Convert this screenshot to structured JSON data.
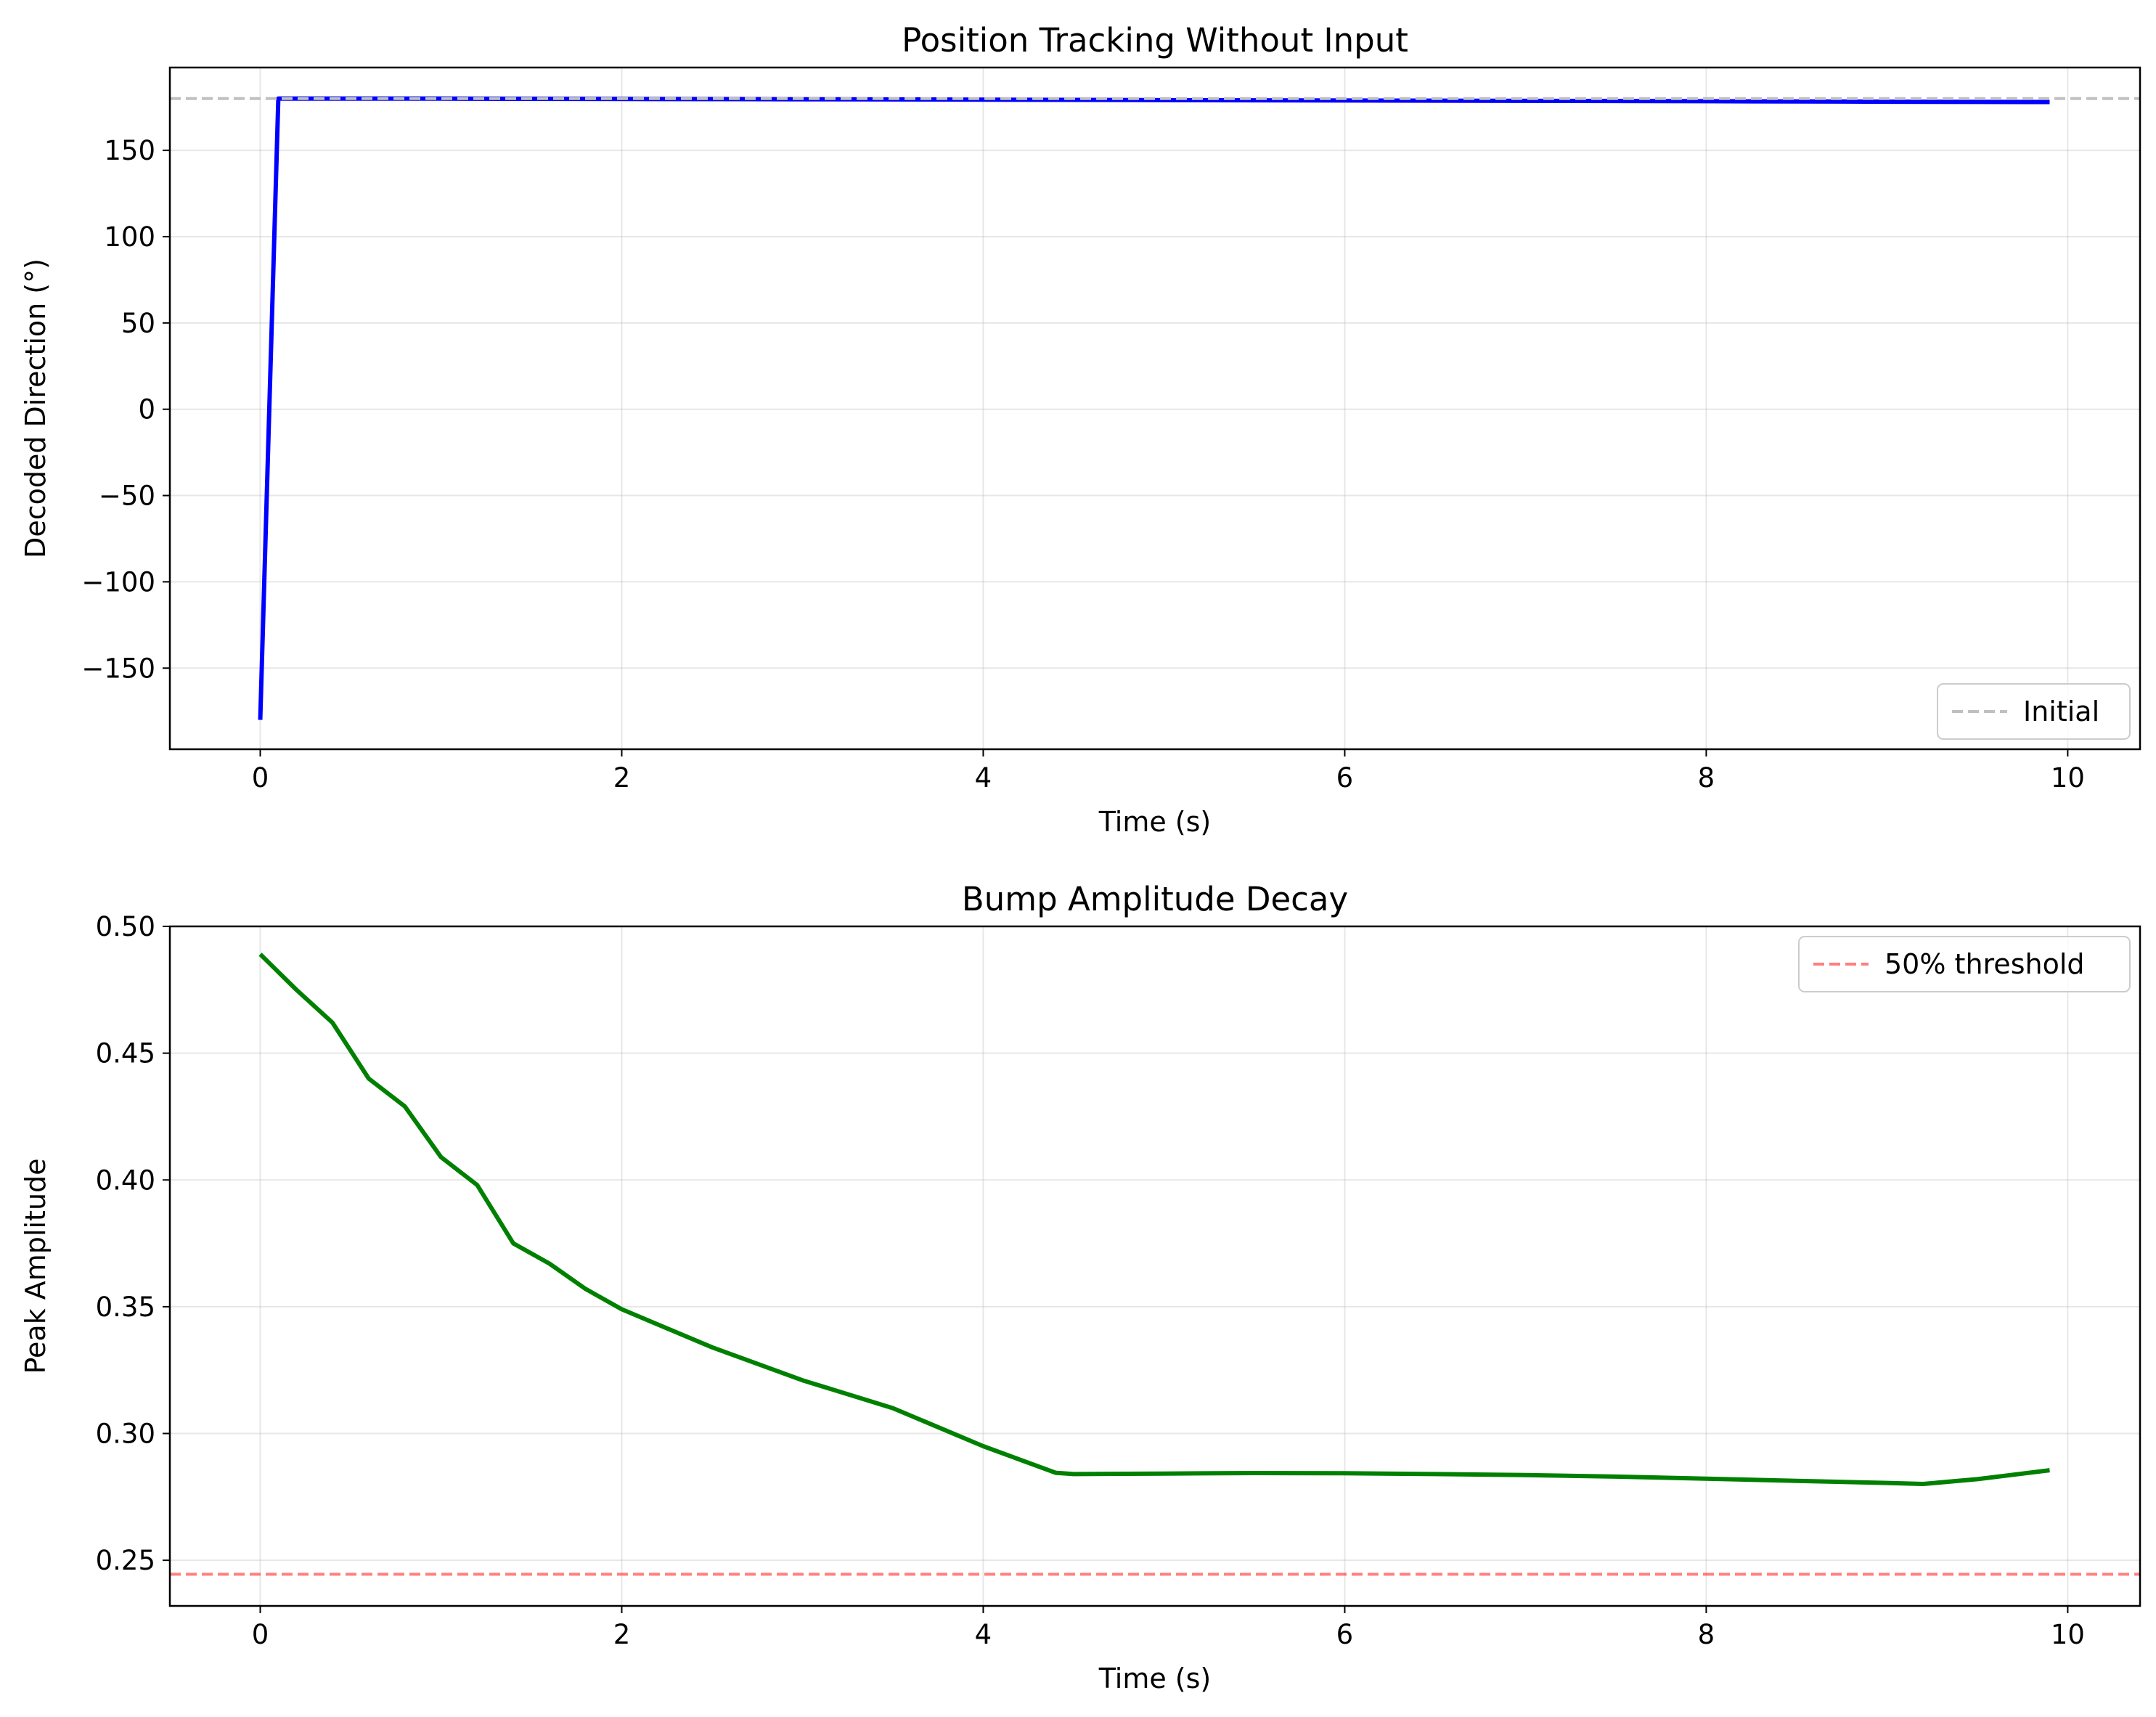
{
  "chart_data": [
    {
      "type": "line",
      "title": "Position Tracking Without Input",
      "xlabel": "Time (s)",
      "ylabel": "Decoded Direction (°)",
      "xlim": [
        -0.5,
        10.4
      ],
      "ylim": [
        -197,
        198
      ],
      "xticks": [
        0,
        2,
        4,
        6,
        8,
        10
      ],
      "xtick_labels": [
        "0",
        "2",
        "4",
        "6",
        "8",
        "10"
      ],
      "yticks": [
        -150,
        -100,
        -50,
        0,
        50,
        100,
        150
      ],
      "ytick_labels": [
        "−150",
        "−100",
        "−50",
        "0",
        "50",
        "100",
        "150"
      ],
      "grid": true,
      "legend_position": "lower right",
      "series": [
        {
          "color": "#0000ff",
          "style": "solid",
          "x": [
            0,
            0.1,
            1,
            2,
            3,
            4,
            5,
            6,
            7,
            8,
            9,
            9.9
          ],
          "y": [
            -180,
            180,
            180,
            179.8,
            179.6,
            179.4,
            179.1,
            178.9,
            178.7,
            178.5,
            178.2,
            178
          ]
        },
        {
          "name": "Initial",
          "color": "#c0c0c0",
          "style": "dashed",
          "hline": 180
        }
      ]
    },
    {
      "type": "line",
      "title": "Bump Amplitude Decay",
      "xlabel": "Time (s)",
      "ylabel": "Peak Amplitude",
      "xlim": [
        -0.5,
        10.4
      ],
      "ylim": [
        0.232,
        0.5
      ],
      "xticks": [
        0,
        2,
        4,
        6,
        8,
        10
      ],
      "xtick_labels": [
        "0",
        "2",
        "4",
        "6",
        "8",
        "10"
      ],
      "yticks": [
        0.25,
        0.3,
        0.35,
        0.4,
        0.45,
        0.5
      ],
      "ytick_labels": [
        "0.25",
        "0.30",
        "0.35",
        "0.40",
        "0.45",
        "0.50"
      ],
      "grid": true,
      "legend_position": "upper right",
      "series": [
        {
          "color": "#008000",
          "style": "solid",
          "x": [
            0,
            0.2,
            0.4,
            0.6,
            0.8,
            1.0,
            1.2,
            1.4,
            1.6,
            1.8,
            2.0,
            2.5,
            3.0,
            3.5,
            4.0,
            4.4,
            4.5,
            5.0,
            5.5,
            6.0,
            6.5,
            7.0,
            7.5,
            8.0,
            8.5,
            9.0,
            9.2,
            9.5,
            9.9
          ],
          "y": [
            0.489,
            0.475,
            0.462,
            0.44,
            0.429,
            0.409,
            0.398,
            0.375,
            0.367,
            0.357,
            0.349,
            0.334,
            0.321,
            0.31,
            0.295,
            0.2845,
            0.284,
            0.2842,
            0.2844,
            0.2843,
            0.284,
            0.2836,
            0.283,
            0.2822,
            0.2813,
            0.2805,
            0.2801,
            0.282,
            0.2855
          ]
        },
        {
          "name": "50% threshold",
          "color": "#ff0000",
          "opacity": 0.5,
          "style": "dashed",
          "hline": 0.2445
        }
      ]
    }
  ]
}
